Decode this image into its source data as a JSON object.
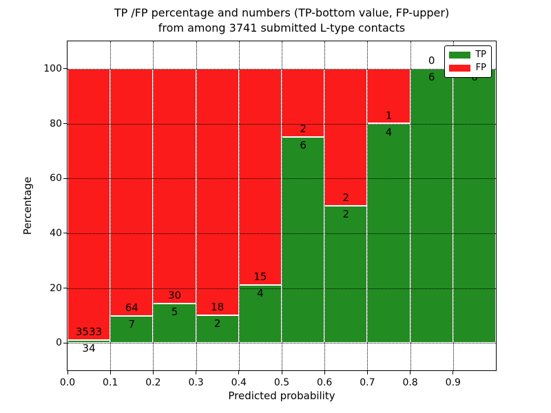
{
  "title": {
    "line1": "TP /FP percentage and numbers (TP-bottom value, FP-upper)",
    "line2": "from among 3741 submitted L-type contacts"
  },
  "chart_data": {
    "type": "bar",
    "stacked": true,
    "orientation": "vertical",
    "title": "TP /FP percentage and numbers (TP-bottom value, FP-upper)\nfrom among 3741 submitted L-type contacts",
    "xlabel": "Predicted probability",
    "ylabel": "Percentage",
    "total_submitted": 3741,
    "bin_edges": [
      0.0,
      0.1,
      0.2,
      0.3,
      0.4,
      0.5,
      0.6,
      0.7,
      0.8,
      0.9,
      1.0
    ],
    "xtick_labels": [
      "0.0",
      "0.1",
      "0.2",
      "0.3",
      "0.4",
      "0.5",
      "0.6",
      "0.7",
      "0.8",
      "0.9"
    ],
    "ytick_values": [
      0,
      20,
      40,
      60,
      80,
      100
    ],
    "ytick_labels": [
      "0",
      "20",
      "40",
      "60",
      "80",
      "100"
    ],
    "xlim": [
      0.0,
      1.0
    ],
    "ylim": [
      -10,
      110
    ],
    "grid": true,
    "series": [
      {
        "name": "TP",
        "color": "#228b22",
        "counts": [
          34,
          7,
          5,
          2,
          4,
          6,
          2,
          4,
          6,
          6
        ]
      },
      {
        "name": "FP",
        "color": "#fb1b1b",
        "counts": [
          3533,
          64,
          30,
          18,
          15,
          2,
          2,
          1,
          0,
          0
        ]
      }
    ],
    "tp_percent": [
      0.95,
      9.86,
      14.29,
      10.0,
      21.05,
      75.0,
      50.0,
      80.0,
      100.0,
      100.0
    ],
    "bar_edge_color": "#ffffff",
    "legend": {
      "position": "upper right",
      "entries": [
        {
          "label": "TP",
          "color": "#228b22"
        },
        {
          "label": "FP",
          "color": "#fb1b1b"
        }
      ]
    }
  }
}
